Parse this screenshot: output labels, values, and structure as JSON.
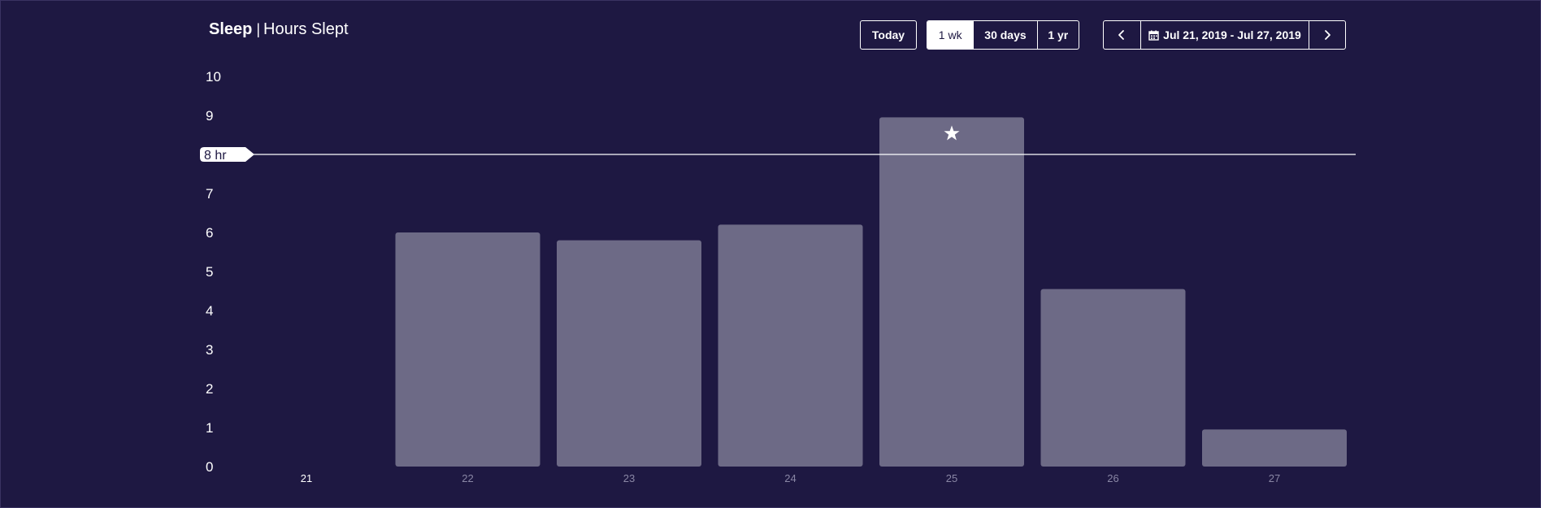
{
  "header": {
    "title_main": "Sleep",
    "title_separator": "|",
    "title_sub": "Hours Slept"
  },
  "controls": {
    "today_label": "Today",
    "ranges": [
      {
        "label": "1 wk",
        "active": true
      },
      {
        "label": "30 days",
        "active": false
      },
      {
        "label": "1 yr",
        "active": false
      }
    ],
    "date_range_label": "Jul 21, 2019 - Jul 27, 2019",
    "prev_icon": "chevron-left-icon",
    "next_icon": "chevron-right-icon",
    "calendar_icon": "calendar-icon"
  },
  "colors": {
    "background": "#1e1842",
    "bar": "#6d6a86",
    "text": "#ffffff",
    "muted_tick": "#8a87a5",
    "goal_line": "#ffffff"
  },
  "chart_data": {
    "type": "bar",
    "categories": [
      "21",
      "22",
      "23",
      "24",
      "25",
      "26",
      "27"
    ],
    "values": [
      0,
      6.0,
      5.8,
      6.2,
      8.95,
      4.55,
      0.95
    ],
    "highlighted_category": "21",
    "star_category": "25",
    "star_icon": "star-icon",
    "ylim": [
      0,
      10
    ],
    "yticks": [
      0,
      1,
      2,
      3,
      4,
      5,
      6,
      7,
      8,
      9,
      10
    ],
    "goal": {
      "value": 8,
      "label": "8 hr"
    },
    "grid": false,
    "legend": "none"
  }
}
